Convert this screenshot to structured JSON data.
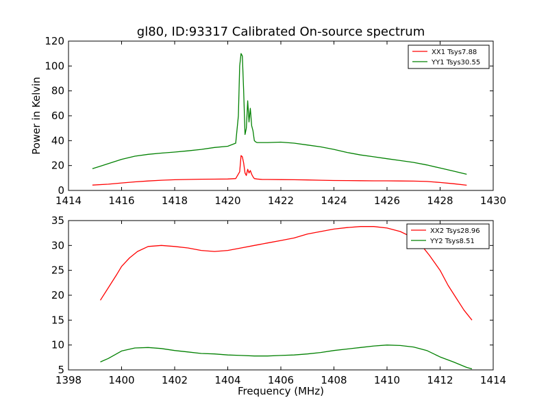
{
  "chart_data": [
    {
      "type": "line",
      "title": "gl80, ID:93317 Calibrated On-source spectrum",
      "xlabel": "",
      "ylabel": "Power in Kelvin",
      "xlim": [
        1414,
        1430
      ],
      "ylim": [
        0,
        120
      ],
      "xticks": [
        1414,
        1416,
        1418,
        1420,
        1422,
        1424,
        1426,
        1428,
        1430
      ],
      "yticks": [
        0,
        20,
        40,
        60,
        80,
        100,
        120
      ],
      "grid": false,
      "legend_position": "top-right",
      "series": [
        {
          "name": "XX1 Tsys7.88",
          "color": "#ff0000",
          "x": [
            1414.9,
            1415.5,
            1416.0,
            1416.5,
            1417.0,
            1417.5,
            1418.0,
            1418.5,
            1419.0,
            1419.5,
            1420.0,
            1420.3,
            1420.45,
            1420.5,
            1420.55,
            1420.6,
            1420.65,
            1420.7,
            1420.75,
            1420.8,
            1420.85,
            1420.9,
            1420.95,
            1421.0,
            1421.1,
            1421.3,
            1421.5,
            1422.0,
            1422.5,
            1423.0,
            1423.5,
            1424.0,
            1424.5,
            1425.0,
            1425.5,
            1426.0,
            1426.5,
            1427.0,
            1427.5,
            1428.0,
            1428.5,
            1429.0
          ],
          "y": [
            4.3,
            5.0,
            6.0,
            6.9,
            7.6,
            8.2,
            8.6,
            8.8,
            9.0,
            9.1,
            9.2,
            9.5,
            15.0,
            28.0,
            27.0,
            22.0,
            14.0,
            12.0,
            17.0,
            14.0,
            16.0,
            13.0,
            11.0,
            9.5,
            9.2,
            8.8,
            8.8,
            8.7,
            8.6,
            8.4,
            8.2,
            8.0,
            7.9,
            7.8,
            7.7,
            7.7,
            7.6,
            7.5,
            7.2,
            6.4,
            5.4,
            4.2
          ]
        },
        {
          "name": "YY1 Tsys30.55",
          "color": "#008000",
          "x": [
            1414.9,
            1415.2,
            1415.5,
            1416.0,
            1416.5,
            1417.0,
            1417.5,
            1418.0,
            1418.5,
            1419.0,
            1419.5,
            1420.0,
            1420.3,
            1420.4,
            1420.45,
            1420.5,
            1420.55,
            1420.6,
            1420.65,
            1420.7,
            1420.75,
            1420.8,
            1420.85,
            1420.9,
            1420.95,
            1421.0,
            1421.05,
            1421.1,
            1421.5,
            1422.0,
            1422.5,
            1423.0,
            1423.5,
            1424.0,
            1424.5,
            1425.0,
            1425.5,
            1426.0,
            1426.5,
            1427.0,
            1427.5,
            1428.0,
            1428.5,
            1429.0
          ],
          "y": [
            17.5,
            19.5,
            21.5,
            25.0,
            27.5,
            29.0,
            30.0,
            30.8,
            31.8,
            33.0,
            34.5,
            35.5,
            38.0,
            60.0,
            100.0,
            110.0,
            108.0,
            80.0,
            45.0,
            50.0,
            72.0,
            55.0,
            66.0,
            52.0,
            48.0,
            40.0,
            39.0,
            38.5,
            38.5,
            38.8,
            38.0,
            36.5,
            35.0,
            33.0,
            30.5,
            28.5,
            27.0,
            25.5,
            24.0,
            22.5,
            20.5,
            18.0,
            15.5,
            13.0
          ]
        }
      ]
    },
    {
      "type": "line",
      "title": "",
      "xlabel": "Frequency (MHz)",
      "ylabel": "",
      "xlim": [
        1398,
        1414
      ],
      "ylim": [
        5,
        35
      ],
      "xticks": [
        1398,
        1400,
        1402,
        1404,
        1406,
        1408,
        1410,
        1412,
        1414
      ],
      "yticks": [
        5,
        10,
        15,
        20,
        25,
        30,
        35
      ],
      "grid": false,
      "legend_position": "top-right",
      "series": [
        {
          "name": "XX2 Tsys28.96",
          "color": "#ff0000",
          "x": [
            1399.2,
            1399.5,
            1399.8,
            1400.0,
            1400.3,
            1400.6,
            1401.0,
            1401.5,
            1402.0,
            1402.5,
            1403.0,
            1403.5,
            1404.0,
            1404.5,
            1405.0,
            1405.5,
            1406.0,
            1406.5,
            1407.0,
            1407.5,
            1408.0,
            1408.5,
            1409.0,
            1409.5,
            1410.0,
            1410.5,
            1411.0,
            1411.3,
            1411.6,
            1412.0,
            1412.3,
            1412.6,
            1412.9,
            1413.2
          ],
          "y": [
            19.0,
            21.5,
            24.0,
            25.8,
            27.5,
            28.8,
            29.8,
            30.0,
            29.8,
            29.5,
            29.0,
            28.8,
            29.0,
            29.5,
            30.0,
            30.5,
            31.0,
            31.5,
            32.3,
            32.8,
            33.3,
            33.6,
            33.8,
            33.8,
            33.5,
            32.8,
            31.5,
            30.0,
            28.0,
            25.0,
            22.0,
            19.5,
            17.0,
            15.0
          ]
        },
        {
          "name": "YY2 Tsys8.51",
          "color": "#008000",
          "x": [
            1399.2,
            1399.5,
            1400.0,
            1400.5,
            1401.0,
            1401.5,
            1402.0,
            1402.5,
            1403.0,
            1403.5,
            1404.0,
            1404.5,
            1405.0,
            1405.5,
            1406.0,
            1406.5,
            1407.0,
            1407.5,
            1408.0,
            1408.5,
            1409.0,
            1409.5,
            1410.0,
            1410.5,
            1411.0,
            1411.5,
            1412.0,
            1412.5,
            1413.0,
            1413.2
          ],
          "y": [
            6.6,
            7.3,
            8.8,
            9.4,
            9.5,
            9.3,
            8.9,
            8.6,
            8.3,
            8.2,
            8.0,
            7.9,
            7.8,
            7.8,
            7.9,
            8.0,
            8.2,
            8.5,
            8.9,
            9.2,
            9.5,
            9.8,
            10.0,
            9.9,
            9.6,
            8.9,
            7.6,
            6.6,
            5.5,
            5.2
          ]
        }
      ]
    }
  ]
}
